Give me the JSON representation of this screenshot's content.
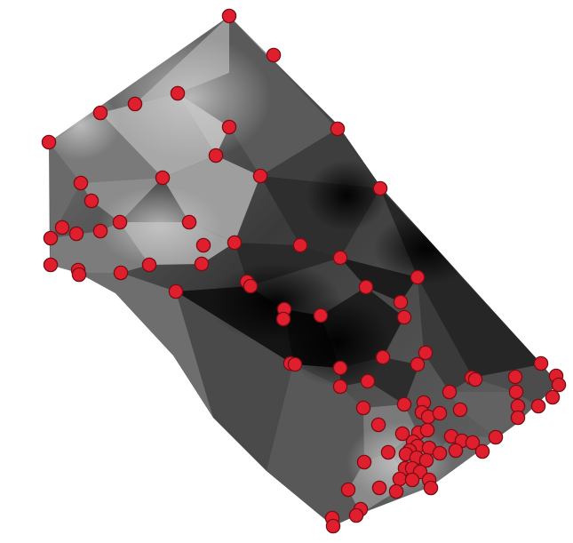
{
  "surface": {
    "colors": {
      "background": "#ffffff",
      "dark": "#050505",
      "mid": "#5a5a5a",
      "light": "#b4b4b4",
      "point_fill": "#e01f2e",
      "point_stroke": "#7a0d14"
    }
  },
  "points": {
    "color": "#e01f2e",
    "count": 101
  }
}
